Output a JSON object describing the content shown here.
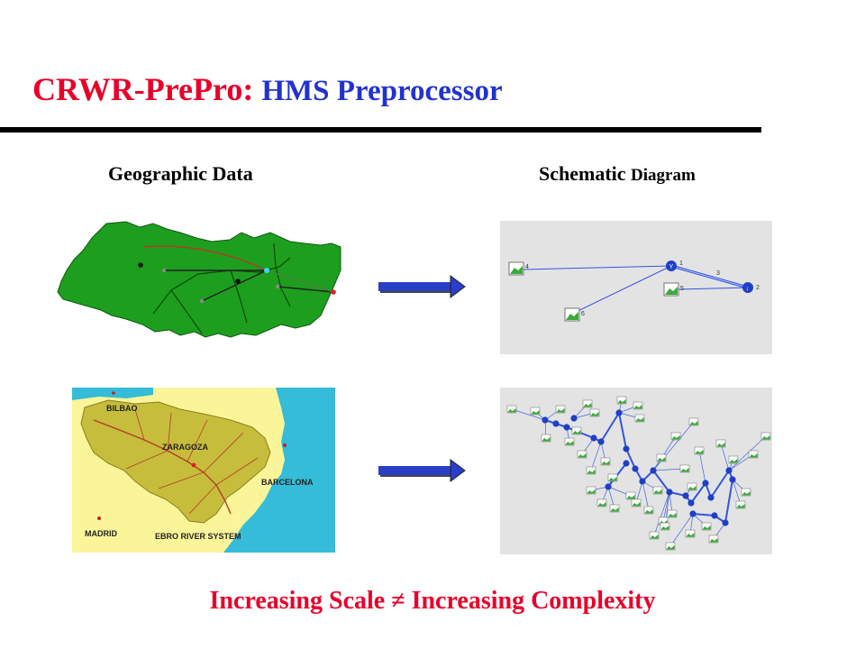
{
  "title": {
    "main": "CRWR-PrePro:",
    "sub": "HMS Preprocessor"
  },
  "columns": {
    "left": "Geographic Data",
    "right_main": "Schematic",
    "right_small": "Diagram"
  },
  "top_schematic_labels": [
    "1",
    "2",
    "3",
    "4",
    "5",
    "6"
  ],
  "map_labels": {
    "bilbao": "BILBAO",
    "zaragoza": "ZARAGOZA",
    "barcelona": "BARCELONA",
    "madrid": "MADRID",
    "system": "EBRO RIVER SYSTEM"
  },
  "footer": {
    "left": "Increasing Scale",
    "symbol": "≠",
    "right": "Increasing Complexity"
  },
  "colors": {
    "title_red": "#e8002a",
    "title_blue": "#2233cc",
    "watershed_green": "#1e9e1e",
    "map_yellow": "#fbf59a",
    "sea_blue": "#35bcd8",
    "node_blue": "#1f3fc4"
  }
}
